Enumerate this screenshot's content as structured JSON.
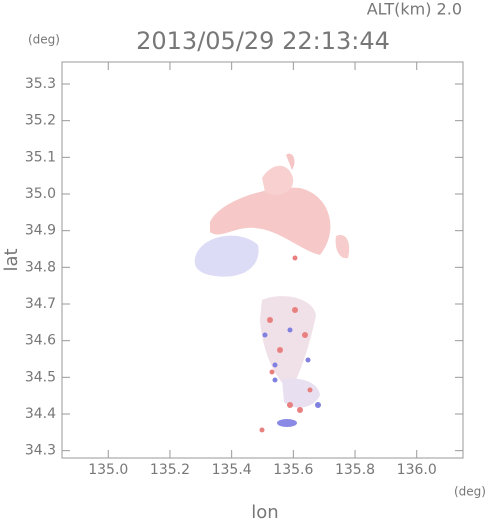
{
  "chart_data": {
    "type": "map",
    "title": "2013/05/29 22:13:44",
    "subtitle": "ALT(km)  2.0",
    "x_label": "lon",
    "y_label": "lat",
    "x_unit": "(deg)",
    "y_unit": "(deg)",
    "xlim": [
      134.85,
      136.15
    ],
    "ylim": [
      34.28,
      35.36
    ],
    "xticks": [
      {
        "value": 135,
        "label": "135.0"
      },
      135.2,
      135.4,
      135.6,
      135.8,
      {
        "value": 136,
        "label": "136.0"
      }
    ],
    "yticks": [
      34.3,
      34.4,
      34.5,
      34.6,
      34.7,
      34.8,
      34.9,
      {
        "value": 35,
        "label": "35.0"
      },
      35.1,
      35.2,
      35.3
    ]
  }
}
